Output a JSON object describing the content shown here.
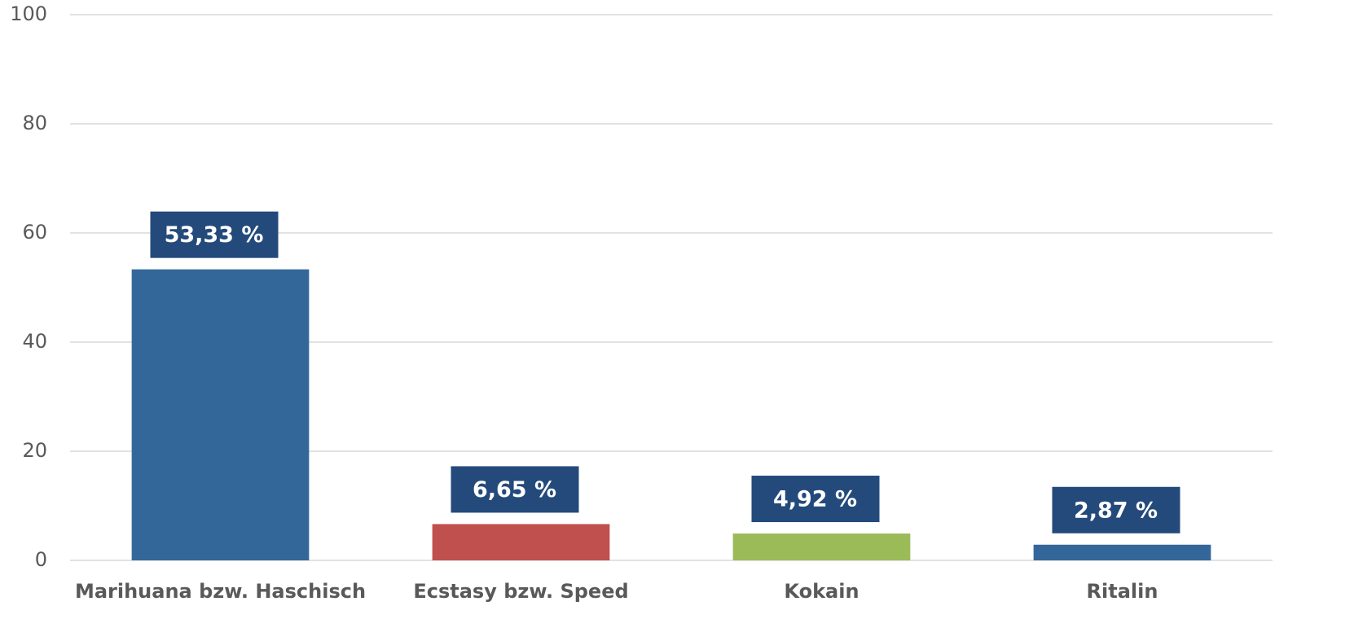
{
  "chart_data": {
    "type": "bar",
    "categories": [
      "Marihuana bzw. Haschisch",
      "Ecstasy bzw. Speed",
      "Kokain",
      "Ritalin"
    ],
    "values": [
      53.33,
      6.65,
      4.92,
      2.87
    ],
    "value_labels": [
      "53,33 %",
      "6,65 %",
      "4,92 %",
      "2,87 %"
    ],
    "colors": [
      "#346799",
      "#c0504d",
      "#9bbb59",
      "#346799"
    ],
    "ylim": [
      0,
      100
    ],
    "yticks": [
      0,
      20,
      40,
      60,
      80,
      100
    ],
    "grid": true
  }
}
